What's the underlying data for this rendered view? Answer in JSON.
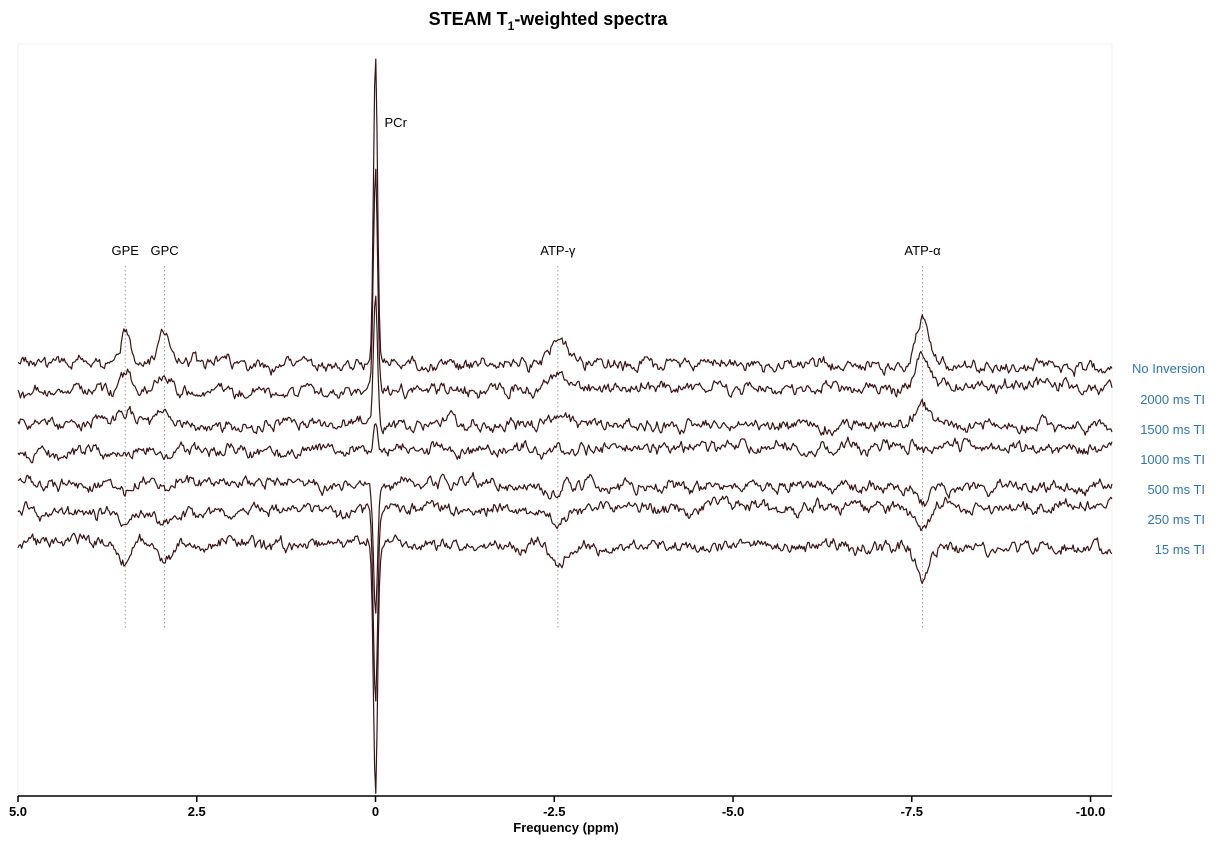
{
  "chart_data": {
    "type": "line",
    "title": "STEAM T",
    "title_subscript": "1",
    "title_suffix": "-weighted spectra",
    "xlabel": "Frequency (ppm)",
    "xlim": [
      5.0,
      -10.3
    ],
    "x_ticks": [
      {
        "value": 5.0,
        "label": "5.0"
      },
      {
        "value": 2.5,
        "label": "2.5"
      },
      {
        "value": 0,
        "label": "0"
      },
      {
        "value": -2.5,
        "label": "-2.5"
      },
      {
        "value": -5.0,
        "label": "-5.0"
      },
      {
        "value": -7.5,
        "label": "-7.5"
      },
      {
        "value": -10.0,
        "label": "-10.0"
      }
    ],
    "grid": false,
    "line_color": "#3a1414",
    "label_color": "#2e75b6",
    "peaks": [
      {
        "name": "GPE",
        "ppm": 3.5
      },
      {
        "name": "GPC",
        "ppm": 2.95
      },
      {
        "name": "PCr",
        "ppm": 0
      },
      {
        "name": "ATP-γ",
        "ppm": -2.55
      },
      {
        "name": "ATP-α",
        "ppm": -7.65
      }
    ],
    "series": [
      {
        "name": "No Inversion",
        "baseline": 0.28,
        "peak_amplitudes": [
          0.1,
          0.09,
          1.0,
          0.08,
          0.16
        ]
      },
      {
        "name": "2000 ms TI",
        "baseline": 0.235,
        "peak_amplitudes": [
          0.07,
          0.06,
          0.72,
          0.05,
          0.12
        ]
      },
      {
        "name": "1500 ms TI",
        "baseline": 0.2,
        "peak_amplitudes": [
          0.04,
          0.04,
          0.42,
          0.03,
          0.07
        ]
      },
      {
        "name": "1000 ms TI",
        "baseline": 0.16,
        "peak_amplitudes": [
          0.0,
          0.0,
          0.08,
          0.0,
          0.0
        ]
      },
      {
        "name": "500 ms TI",
        "baseline": 0.125,
        "peak_amplitudes": [
          -0.03,
          -0.03,
          -0.4,
          -0.03,
          -0.05
        ]
      },
      {
        "name": "250 ms TI",
        "baseline": 0.08,
        "peak_amplitudes": [
          -0.05,
          -0.05,
          -0.62,
          -0.04,
          -0.07
        ]
      },
      {
        "name": "15 ms TI",
        "baseline": 0.04,
        "peak_amplitudes": [
          -0.06,
          -0.06,
          -0.8,
          -0.05,
          -0.09
        ]
      }
    ]
  }
}
